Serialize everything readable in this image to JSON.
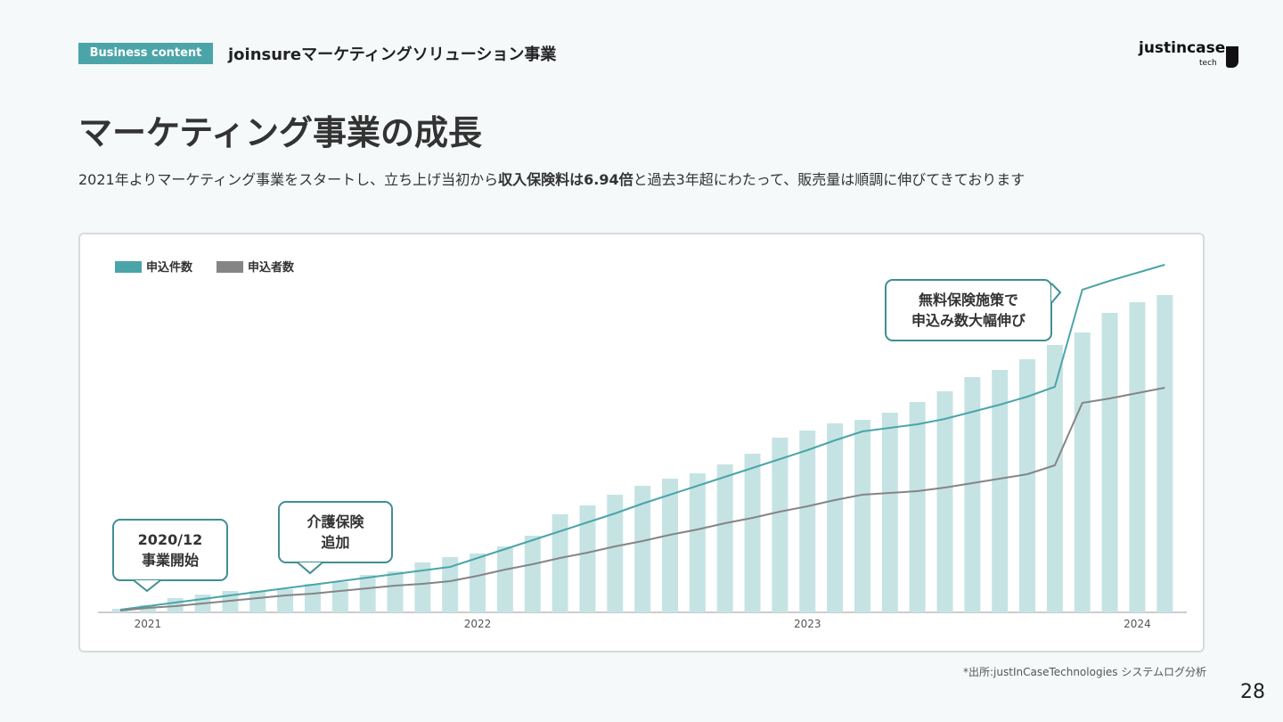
{
  "header": {
    "tag": "Business content",
    "title": "joinsureマーケティングソリューション事業",
    "logo": "justincase",
    "logo_sub": "tech"
  },
  "title": "マーケティング事業の成長",
  "subtitle_parts": [
    "2021年よりマーケティング事業をスタートし、立ち上げ当初から",
    "収入保険料は6.94倍",
    "と過去3年超にわたって、販売量は順調に伸びてきております"
  ],
  "source": "*出所:justInCaseTechnologies システムログ分析",
  "page_number": "28",
  "chart_data": {
    "type": "combo",
    "categories": [
      null,
      "2021",
      null,
      null,
      null,
      null,
      null,
      null,
      null,
      null,
      null,
      null,
      null,
      "2022",
      null,
      null,
      null,
      null,
      null,
      null,
      null,
      null,
      null,
      null,
      null,
      "2023",
      null,
      null,
      null,
      null,
      null,
      null,
      null,
      null,
      null,
      null,
      null,
      "2024",
      null
    ],
    "ylim": [
      0,
      100
    ],
    "series": [
      {
        "type": "bar",
        "color": "#c6e3e4",
        "values": [
          1,
          2,
          4,
          5,
          6,
          6,
          6.5,
          8,
          8.5,
          10.5,
          11.5,
          14,
          15.5,
          16.5,
          18.5,
          21.5,
          27.5,
          30,
          33,
          35.5,
          37.5,
          39,
          41.5,
          44.5,
          49,
          51,
          53,
          54,
          56,
          59,
          62,
          66,
          68,
          71,
          75,
          78.5,
          84,
          87,
          89
        ]
      },
      {
        "type": "line",
        "name": "申込件数",
        "color": "#4ba5a8",
        "values": [
          0.75,
          1.75,
          2.75,
          3.75,
          4.75,
          5.75,
          6.75,
          7.75,
          8.75,
          9.75,
          10.75,
          11.75,
          12.75,
          15.25,
          17.75,
          20.25,
          22.75,
          25.25,
          27.75,
          30.5,
          33,
          35.5,
          38,
          40.5,
          43,
          45.5,
          48.25,
          50.75,
          51.75,
          52.75,
          54.25,
          56.25,
          58.25,
          60.5,
          63.25,
          90.5,
          93,
          95.25,
          97.5
        ]
      },
      {
        "type": "line",
        "name": "申込者数",
        "color": "#858585",
        "values": [
          0.5,
          1.25,
          1.75,
          2.5,
          3.25,
          4,
          4.75,
          5.25,
          6,
          6.75,
          7.5,
          8,
          8.75,
          10.25,
          12,
          13.5,
          15.25,
          16.75,
          18.5,
          20,
          21.75,
          23.25,
          25,
          26.5,
          28.25,
          29.75,
          31.5,
          33,
          33.5,
          34,
          35,
          36.25,
          37.5,
          38.75,
          41.25,
          58.75,
          60,
          61.5,
          63
        ]
      }
    ],
    "annotations": [
      [
        "2020/12",
        "事業開始"
      ],
      [
        "介護保険",
        "追加"
      ],
      [
        "無料保険施策で",
        "申込み数大幅伸び"
      ]
    ]
  }
}
